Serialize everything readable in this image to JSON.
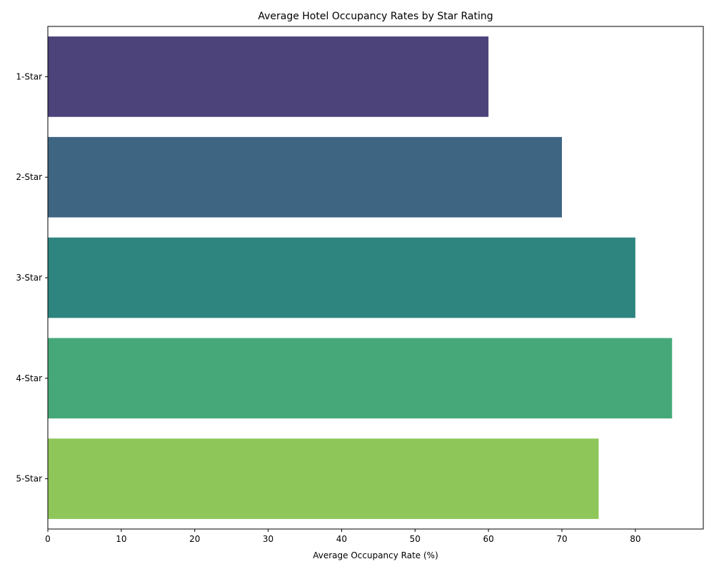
{
  "chart_data": {
    "type": "bar",
    "orientation": "horizontal",
    "title": "Average Hotel Occupancy Rates by Star Rating",
    "xlabel": "Average Occupancy Rate (%)",
    "ylabel": "",
    "categories": [
      "1-Star",
      "2-Star",
      "3-Star",
      "4-Star",
      "5-Star"
    ],
    "values": [
      60,
      70,
      80,
      85,
      75
    ],
    "colors": [
      "#4c437b",
      "#3e6683",
      "#2e847e",
      "#46a878",
      "#8fc659"
    ],
    "xlim": [
      0,
      89.25
    ],
    "xticks": [
      0,
      10,
      20,
      30,
      40,
      50,
      60,
      70,
      80
    ],
    "grid": false,
    "legend": "none"
  }
}
